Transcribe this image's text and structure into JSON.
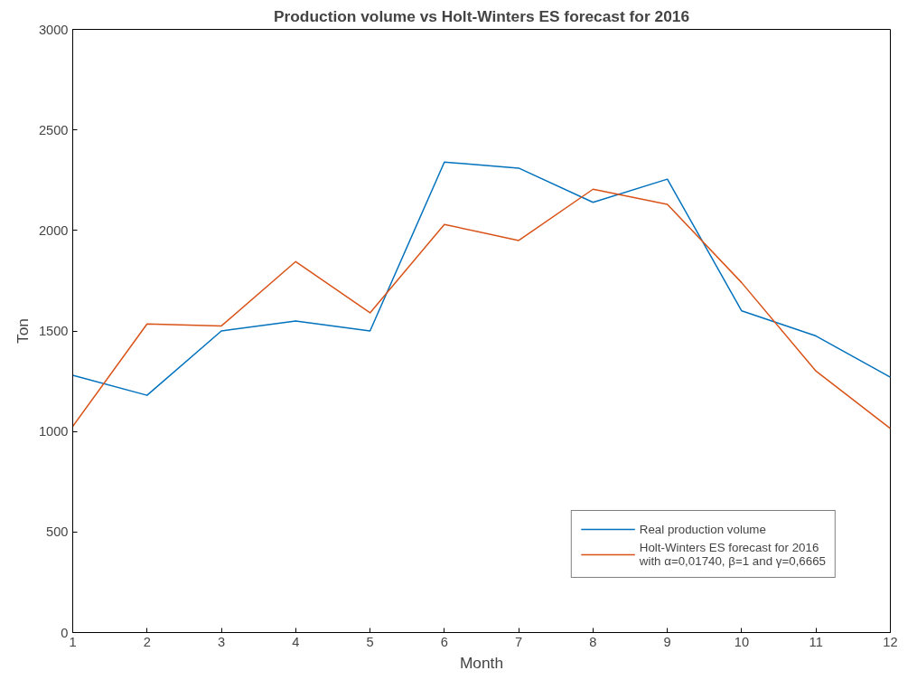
{
  "chart_data": {
    "type": "line",
    "title": "Production volume vs Holt-Winters ES forecast for 2016",
    "xlabel": "Month",
    "ylabel": "Ton",
    "x": [
      1,
      2,
      3,
      4,
      5,
      6,
      7,
      8,
      9,
      10,
      11,
      12
    ],
    "series": [
      {
        "name": "Real production volume",
        "color": "#0072bd",
        "values": [
          1280,
          1180,
          1500,
          1550,
          1500,
          2340,
          2310,
          2140,
          2255,
          1600,
          1475,
          1270
        ]
      },
      {
        "name": "Holt-Winters ES forecast for 2016\nwith α=0,01740, β=1 and γ=0,6665",
        "color": "#d95319",
        "values": [
          1025,
          1535,
          1525,
          1845,
          1590,
          2030,
          1950,
          2205,
          2130,
          1740,
          1300,
          1015
        ]
      }
    ],
    "xlim": [
      1,
      12
    ],
    "xticks": [
      1,
      2,
      3,
      4,
      5,
      6,
      7,
      8,
      9,
      10,
      11,
      12
    ],
    "ylim": [
      0,
      3000
    ],
    "yticks": [
      0,
      500,
      1000,
      1500,
      2000,
      2500,
      3000
    ],
    "grid": false,
    "legend": "bottom right",
    "marker": "none",
    "line_style": "solid"
  }
}
